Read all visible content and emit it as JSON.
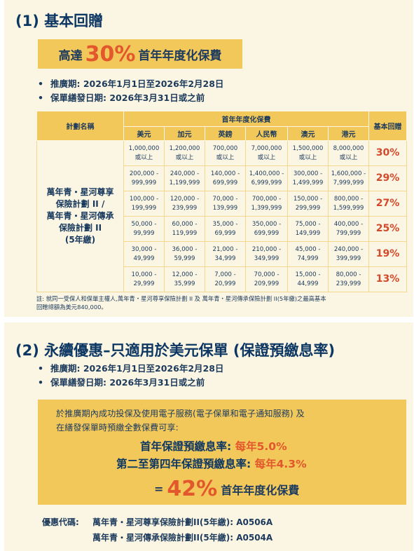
{
  "section1": {
    "title": "(1) 基本回贈",
    "banner": {
      "prefix": "高達",
      "big": "30%",
      "suffix": "首年年度化保費"
    },
    "bullets": [
      "推廣期: 2026年1月1日至2026年2月28日",
      "保單繕發日期: 2026年3月31日或之前"
    ],
    "table": {
      "col_plan": "計劃名稱",
      "group_header": "首年年度化保費",
      "col_rebate": "基本回贈",
      "currencies": [
        "美元",
        "加元",
        "英鎊",
        "人民幣",
        "澳元",
        "港元"
      ],
      "plan_lines": [
        "萬年青・星河尊享",
        "保險計劃 II /",
        "萬年青・星河傳承",
        "保險計劃 II",
        "(5年繳)"
      ],
      "rows": [
        {
          "cells": [
            [
              "1,000,000",
              "或以上"
            ],
            [
              "1,200,000",
              "或以上"
            ],
            [
              "700,000",
              "或以上"
            ],
            [
              "7,000,000",
              "或以上"
            ],
            [
              "1,500,000",
              "或以上"
            ],
            [
              "8,000,000",
              "或以上"
            ]
          ],
          "rebate": "30%"
        },
        {
          "cells": [
            [
              "200,000 -",
              "999,999"
            ],
            [
              "240,000 -",
              "1,199,999"
            ],
            [
              "140,000 -",
              "699,999"
            ],
            [
              "1,400,000 -",
              "6,999,999"
            ],
            [
              "300,000 -",
              "1,499,999"
            ],
            [
              "1,600,000 -",
              "7,999,999"
            ]
          ],
          "rebate": "29%"
        },
        {
          "cells": [
            [
              "100,000 -",
              "199,999"
            ],
            [
              "120,000 -",
              "239,999"
            ],
            [
              "70,000 -",
              "139,999"
            ],
            [
              "700,000 -",
              "1,399,999"
            ],
            [
              "150,000 -",
              "299,999"
            ],
            [
              "800,000 -",
              "1,599,999"
            ]
          ],
          "rebate": "27%"
        },
        {
          "cells": [
            [
              "50,000 -",
              "99,999"
            ],
            [
              "60,000 -",
              "119,999"
            ],
            [
              "35,000 -",
              "69,999"
            ],
            [
              "350,000 -",
              "699,999"
            ],
            [
              "75,000 -",
              "149,999"
            ],
            [
              "400,000 -",
              "799,999"
            ]
          ],
          "rebate": "25%"
        },
        {
          "cells": [
            [
              "30,000 -",
              "49,999"
            ],
            [
              "36,000 -",
              "59,999"
            ],
            [
              "21,000 -",
              "34,999"
            ],
            [
              "210,000 -",
              "349,999"
            ],
            [
              "45,000 -",
              "74,999"
            ],
            [
              "240,000 -",
              "399,999"
            ]
          ],
          "rebate": "19%"
        },
        {
          "cells": [
            [
              "10,000 -",
              "29,999"
            ],
            [
              "12,000 -",
              "35,999"
            ],
            [
              "7,000 -",
              "20,999"
            ],
            [
              "70,000 -",
              "209,999"
            ],
            [
              "15,000 -",
              "44,999"
            ],
            [
              "80,000 -",
              "239,999"
            ]
          ],
          "rebate": "13%"
        }
      ]
    },
    "note_lines": [
      "註: 就同一受保人和保單主權人,萬年青・星河尊享保險計劃 II 及 萬年青・星河傳承保險計劃 II(5年繳)之最高基本",
      "回贈總額為美元840,000。"
    ]
  },
  "section2": {
    "title": "(2) 永續優惠–只適用於美元保單 (保證預繳息率)",
    "bullets": [
      "推廣期: 2026年1月1日至2026年2月28日",
      "保單繕發日期: 2026年3月31日或之前"
    ],
    "box": {
      "line1": "於推廣期內成功投保及使用電子服務(電子保單和電子通知服務) 及",
      "line2": "在繕發保單時預繳全數保費可享:",
      "rate1_label": "首年保證預繳息率:",
      "rate1_value": "每年5.0%",
      "rate2_label": "第二至第四年保證預繳息率:",
      "rate2_value": "每年4.3%",
      "total_eq": "=",
      "total_big": "42%",
      "total_suffix": "首年年度化保費"
    },
    "codes": {
      "label": "優惠代碼:",
      "items": [
        "萬年青・星河尊享保險計劃II(5年繳): A0506A",
        "萬年青・星河傳承保險計劃II(5年繳): A0504A"
      ]
    }
  }
}
